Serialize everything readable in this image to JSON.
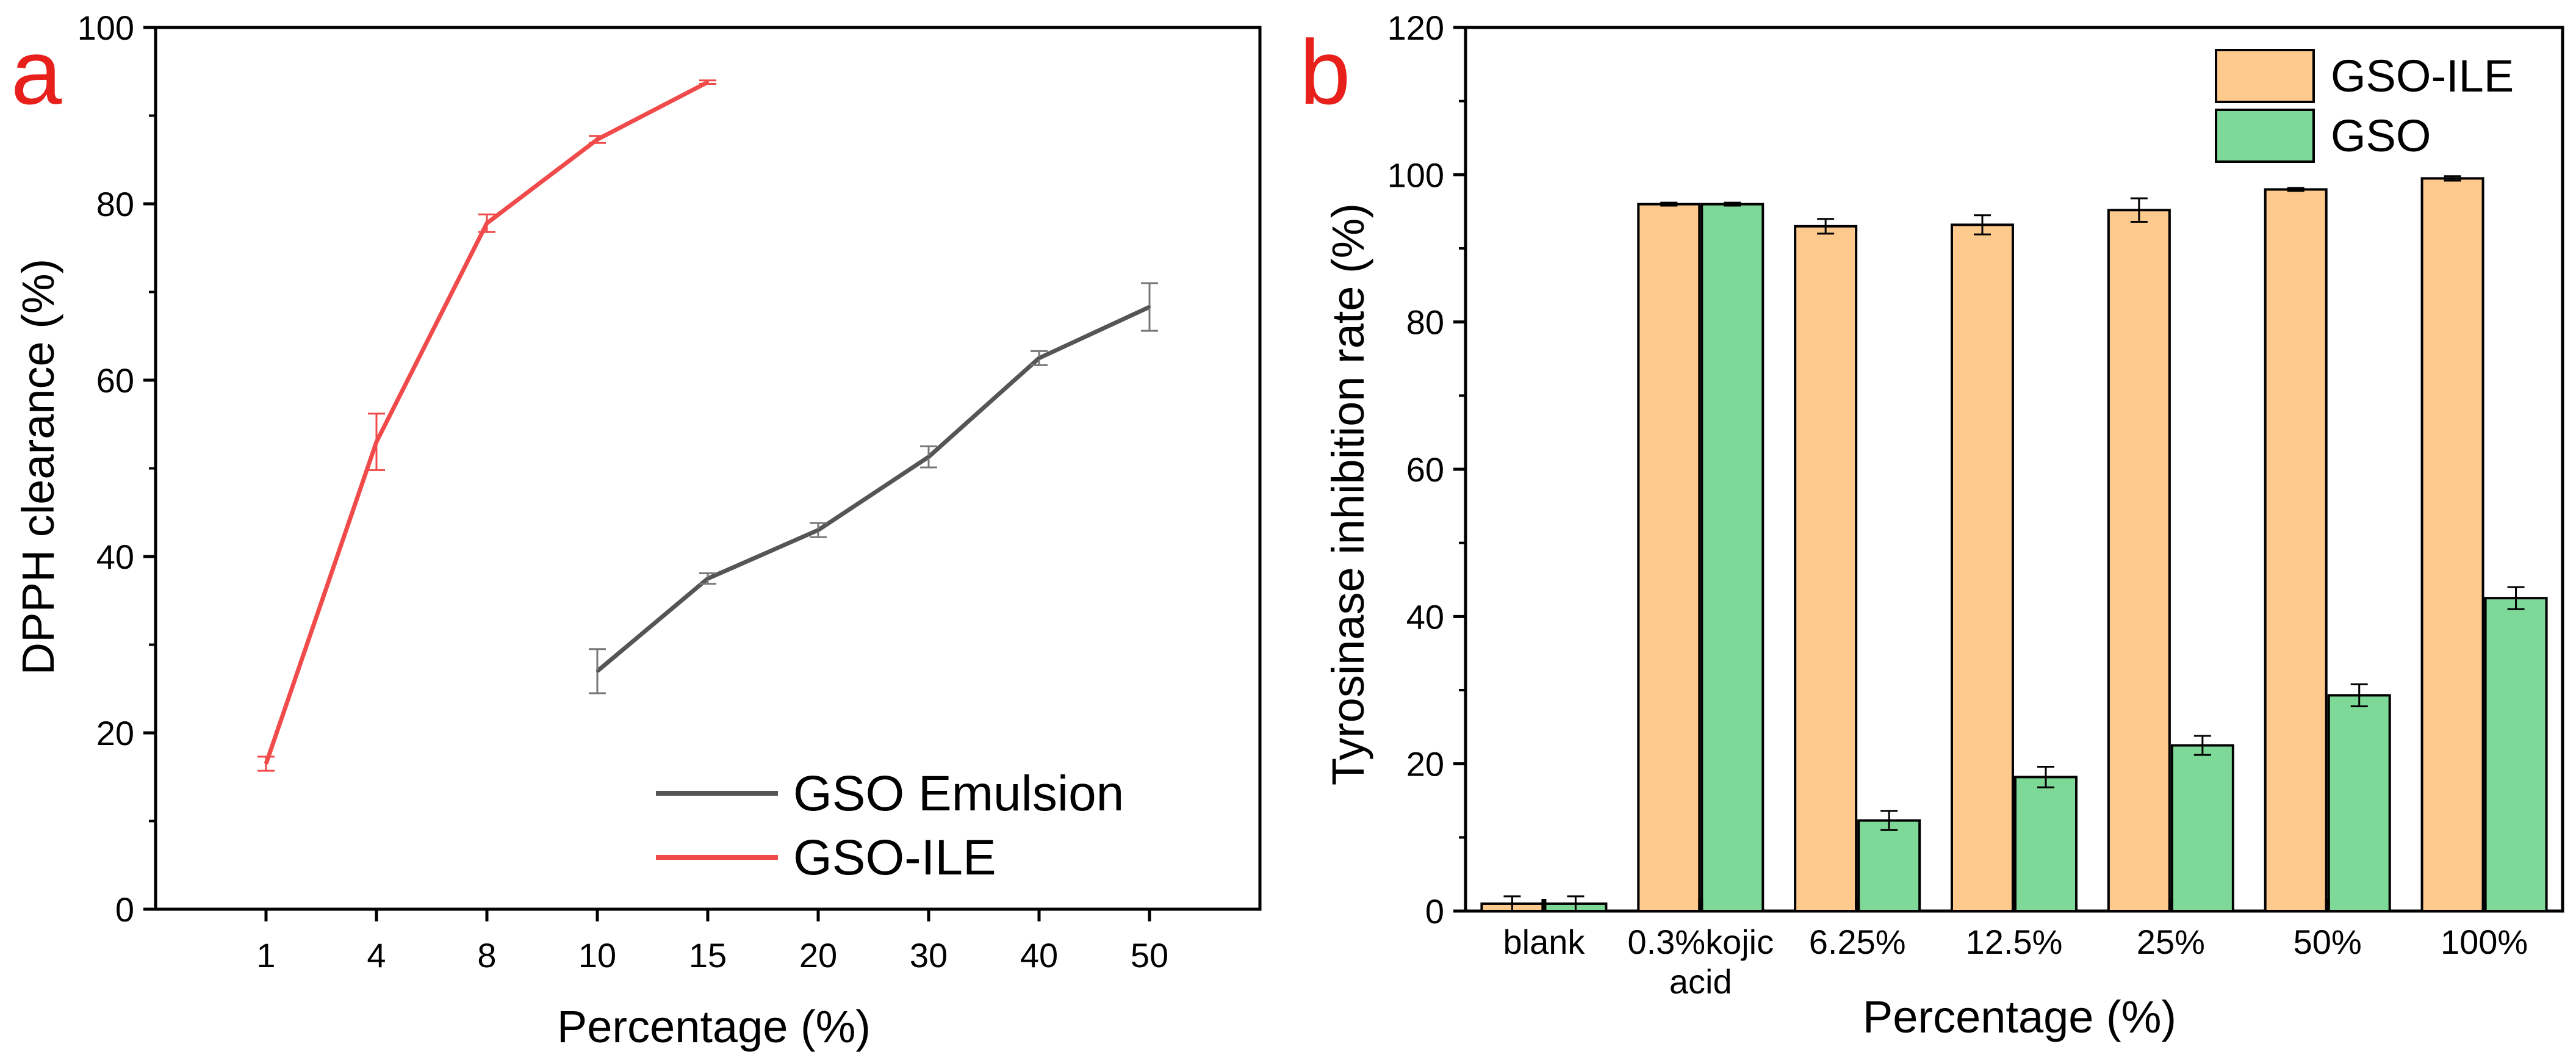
{
  "chart_data": [
    {
      "type": "line",
      "panel_label": "a",
      "xlabel": "Percentage (%)",
      "ylabel": "DPPH clearance (%)",
      "categories": [
        "1",
        "4",
        "8",
        "10",
        "15",
        "20",
        "30",
        "40",
        "50"
      ],
      "ylim": [
        0,
        100
      ],
      "yticks": [
        "0",
        "20",
        "40",
        "60",
        "80",
        "100"
      ],
      "legend_position": "bottom-right",
      "series": [
        {
          "name": "GSO Emulsion",
          "color": "#555555",
          "points": [
            {
              "x": "10",
              "y": 27.0,
              "err": 2.5
            },
            {
              "x": "15",
              "y": 37.5,
              "err": 0.6
            },
            {
              "x": "20",
              "y": 43.0,
              "err": 0.8
            },
            {
              "x": "30",
              "y": 51.3,
              "err": 1.2
            },
            {
              "x": "40",
              "y": 62.5,
              "err": 0.8
            },
            {
              "x": "50",
              "y": 68.3,
              "err": 2.7
            }
          ]
        },
        {
          "name": "GSO-ILE",
          "color": "#f04a4a",
          "points": [
            {
              "x": "1",
              "y": 16.5,
              "err": 0.8
            },
            {
              "x": "4",
              "y": 53.0,
              "err": 3.2
            },
            {
              "x": "8",
              "y": 77.8,
              "err": 1.0
            },
            {
              "x": "10",
              "y": 87.3,
              "err": 0.4
            },
            {
              "x": "15",
              "y": 93.8,
              "err": 0.2
            }
          ]
        }
      ]
    },
    {
      "type": "bar",
      "panel_label": "b",
      "xlabel": "Percentage (%)",
      "ylabel": "Tyrosinase inhibition rate (%)",
      "categories": [
        {
          "line1": "blank",
          "line2": ""
        },
        {
          "line1": "0.3%kojic",
          "line2": "acid"
        },
        {
          "line1": "6.25%",
          "line2": ""
        },
        {
          "line1": "12.5%",
          "line2": ""
        },
        {
          "line1": "25%",
          "line2": ""
        },
        {
          "line1": "50%",
          "line2": ""
        },
        {
          "line1": "100%",
          "line2": ""
        }
      ],
      "ylim": [
        0,
        120
      ],
      "yticks": [
        "0",
        "20",
        "40",
        "60",
        "80",
        "100",
        "120"
      ],
      "legend_position": "top-right",
      "series": [
        {
          "name": "GSO-ILE",
          "color": "#fdc98c",
          "values": [
            1.0,
            96.0,
            93.0,
            93.2,
            95.2,
            98.0,
            99.5
          ],
          "errors": [
            1.0,
            0.2,
            1.0,
            1.3,
            1.6,
            0.2,
            0.3
          ]
        },
        {
          "name": "GSO",
          "color": "#7ed897",
          "values": [
            1.0,
            96.0,
            12.3,
            18.2,
            22.5,
            29.3,
            42.5
          ],
          "errors": [
            1.0,
            0.2,
            1.3,
            1.4,
            1.3,
            1.5,
            1.5
          ]
        }
      ]
    }
  ]
}
